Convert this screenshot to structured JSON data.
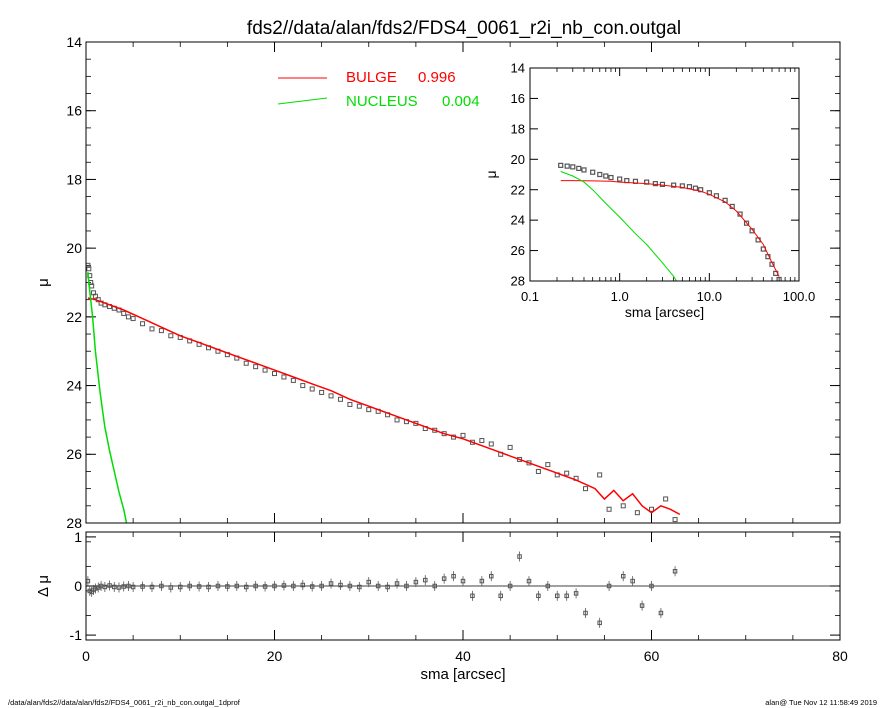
{
  "title": "fds2//data/alan/fds2/FDS4_0061_r2i_nb_con.outgal",
  "footer": {
    "left": "/data/alan/fds2//data/alan/fds2/FDS4_0061_r2i_nb_con.outgal_1dprof",
    "right": "alan@  Tue Nov 12 11:58:49 2019"
  },
  "colors": {
    "bulge": "#ff0000",
    "nucleus": "#00dd00",
    "data": "#555555",
    "axis": "#000000"
  },
  "chart_data": [
    {
      "id": "main_profile",
      "type": "line",
      "xlabel": "sma [arcsec]",
      "ylabel": "μ",
      "xlim": [
        0,
        80
      ],
      "ylim": [
        28,
        14
      ],
      "x_ticks": [
        "0",
        "20",
        "40",
        "60",
        "80"
      ],
      "y_ticks": [
        "14",
        "16",
        "18",
        "20",
        "22",
        "24",
        "26",
        "28"
      ],
      "legend_position": "top-center",
      "legend": [
        {
          "name": "BULGE",
          "value": "0.996",
          "color": "#ff0000"
        },
        {
          "name": "NUCLEUS",
          "value": "0.004",
          "color": "#00dd00"
        }
      ],
      "series": [
        {
          "name": "observed",
          "type": "scatter",
          "x": [
            0.2,
            0.3,
            0.4,
            0.5,
            0.6,
            0.8,
            1.0,
            1.3,
            1.6,
            2.0,
            2.5,
            3.0,
            3.5,
            4.0,
            4.5,
            5.0,
            6.0,
            7.0,
            8.0,
            9.0,
            10.0,
            11.0,
            12.0,
            13.0,
            14.0,
            15.0,
            16.0,
            17.0,
            18.0,
            19.0,
            20.0,
            21.0,
            22.0,
            23.0,
            24.0,
            25.0,
            26.0,
            27.0,
            28.0,
            29.0,
            30.0,
            31.0,
            32.0,
            33.0,
            34.0,
            35.0,
            36.0,
            37.0,
            38.0,
            39.0,
            40.0,
            41.0,
            42.0,
            43.0,
            44.0,
            45.0,
            46.0,
            47.0,
            48.0,
            49.0,
            50.0,
            51.0,
            52.0,
            53.0,
            54.5,
            55.5,
            57.0,
            58.5,
            60.0,
            61.5,
            62.5
          ],
          "y": [
            20.5,
            20.6,
            20.8,
            21.0,
            21.1,
            21.3,
            21.4,
            21.5,
            21.6,
            21.65,
            21.7,
            21.75,
            21.8,
            21.9,
            22.0,
            22.05,
            22.2,
            22.35,
            22.4,
            22.55,
            22.6,
            22.7,
            22.8,
            22.9,
            23.0,
            23.1,
            23.2,
            23.35,
            23.45,
            23.55,
            23.65,
            23.75,
            23.85,
            24.0,
            24.1,
            24.2,
            24.3,
            24.4,
            24.55,
            24.6,
            24.7,
            24.75,
            24.85,
            25.0,
            25.05,
            25.1,
            25.25,
            25.3,
            25.4,
            25.5,
            25.45,
            25.65,
            25.6,
            25.7,
            26.0,
            25.8,
            26.15,
            26.25,
            26.5,
            26.3,
            26.6,
            26.55,
            26.7,
            27.0,
            26.6,
            27.6,
            27.5,
            27.7,
            27.6,
            27.3,
            27.9
          ]
        },
        {
          "name": "BULGE",
          "type": "line",
          "x": [
            0.2,
            1,
            2,
            4,
            6,
            8,
            10,
            12,
            14,
            16,
            18,
            20,
            22,
            24,
            26,
            28,
            30,
            32,
            34,
            36,
            38,
            40,
            42,
            44,
            46,
            48,
            50,
            52,
            54,
            55,
            56,
            57,
            58,
            59,
            60,
            61,
            62,
            63
          ],
          "y": [
            21.45,
            21.5,
            21.6,
            21.8,
            22.05,
            22.3,
            22.55,
            22.75,
            22.95,
            23.15,
            23.35,
            23.55,
            23.75,
            23.95,
            24.15,
            24.4,
            24.6,
            24.8,
            25.0,
            25.2,
            25.4,
            25.55,
            25.75,
            25.95,
            26.15,
            26.35,
            26.55,
            26.75,
            27.0,
            27.3,
            27.05,
            27.35,
            27.15,
            27.5,
            27.7,
            27.5,
            27.6,
            27.75
          ]
        },
        {
          "name": "NUCLEUS",
          "type": "line",
          "x": [
            0.2,
            0.3,
            0.5,
            0.7,
            1.0,
            1.5,
            2.0,
            2.5,
            3.0,
            3.5,
            4.0,
            4.3
          ],
          "y": [
            20.7,
            21.0,
            21.5,
            22.0,
            23.0,
            24.2,
            25.2,
            25.9,
            26.5,
            27.1,
            27.6,
            28.0
          ]
        }
      ]
    },
    {
      "id": "inset_log_profile",
      "type": "line",
      "xlabel": "sma [arcsec]",
      "ylabel": "μ",
      "xscale": "log",
      "xlim": [
        0.1,
        100
      ],
      "ylim": [
        28,
        14
      ],
      "x_ticks": [
        "0.1",
        "1.0",
        "10.0",
        "100.0"
      ],
      "y_ticks": [
        "14",
        "16",
        "18",
        "20",
        "22",
        "24",
        "26",
        "28"
      ],
      "series": [
        {
          "name": "observed",
          "type": "scatter",
          "x": [
            0.22,
            0.26,
            0.3,
            0.35,
            0.4,
            0.5,
            0.6,
            0.7,
            0.8,
            1.0,
            1.2,
            1.5,
            2.0,
            2.5,
            3.0,
            4.0,
            5.0,
            6.0,
            7.0,
            8.0,
            10.0,
            12.0,
            15.0,
            18.0,
            22.0,
            26.0,
            30.0,
            35.0,
            40.0,
            45.0,
            50.0,
            55.0,
            60.0
          ],
          "y": [
            20.4,
            20.45,
            20.5,
            20.6,
            20.7,
            20.85,
            21.0,
            21.1,
            21.2,
            21.3,
            21.4,
            21.45,
            21.5,
            21.6,
            21.65,
            21.7,
            21.75,
            21.8,
            21.9,
            22.0,
            22.2,
            22.4,
            22.7,
            23.1,
            23.6,
            24.2,
            24.7,
            25.3,
            25.9,
            26.4,
            26.9,
            27.5,
            27.9
          ]
        },
        {
          "name": "BULGE",
          "type": "line",
          "x": [
            0.22,
            0.3,
            0.5,
            0.8,
            1.0,
            2.0,
            3.0,
            5.0,
            8.0,
            10.0,
            15.0,
            20.0,
            30.0,
            40.0,
            50.0,
            60.0
          ],
          "y": [
            21.4,
            21.4,
            21.42,
            21.45,
            21.5,
            21.6,
            21.7,
            21.85,
            22.1,
            22.3,
            22.8,
            23.4,
            24.6,
            25.6,
            26.8,
            27.7
          ]
        },
        {
          "name": "NUCLEUS",
          "type": "line",
          "x": [
            0.22,
            0.3,
            0.4,
            0.5,
            0.7,
            1.0,
            1.5,
            2.0,
            3.0,
            4.0,
            4.3
          ],
          "y": [
            20.8,
            21.1,
            21.5,
            22.0,
            22.9,
            23.8,
            24.9,
            25.6,
            26.8,
            27.7,
            28.0
          ]
        }
      ]
    },
    {
      "id": "residuals",
      "type": "scatter",
      "xlabel": "sma [arcsec]",
      "ylabel": "Δ μ",
      "xlim": [
        0,
        80
      ],
      "ylim": [
        -1.1,
        1.1
      ],
      "x_ticks": [
        "0",
        "20",
        "40",
        "60",
        "80"
      ],
      "y_ticks": [
        "1",
        "0",
        "-1"
      ],
      "zero_line": true,
      "series": [
        {
          "name": "residual",
          "x": [
            0.2,
            0.4,
            0.6,
            0.8,
            1.0,
            1.3,
            1.6,
            2.0,
            2.5,
            3.0,
            3.5,
            4.0,
            4.5,
            5.0,
            6.0,
            7.0,
            8.0,
            9.0,
            10.0,
            11.0,
            12.0,
            13.0,
            14.0,
            15.0,
            16.0,
            17.0,
            18.0,
            19.0,
            20.0,
            21.0,
            22.0,
            23.0,
            24.0,
            25.0,
            26.0,
            27.0,
            28.0,
            29.0,
            30.0,
            31.0,
            32.0,
            33.0,
            34.0,
            35.0,
            36.0,
            37.0,
            38.0,
            39.0,
            40.0,
            41.0,
            42.0,
            43.0,
            44.0,
            45.0,
            46.0,
            47.0,
            48.0,
            49.0,
            50.0,
            51.0,
            52.0,
            53.0,
            54.5,
            55.5,
            57.0,
            58.0,
            59.0,
            60.0,
            61.0,
            62.5
          ],
          "y": [
            0.1,
            -0.1,
            -0.12,
            -0.08,
            -0.05,
            -0.03,
            0.0,
            -0.02,
            0.01,
            -0.02,
            -0.03,
            -0.01,
            0.0,
            -0.02,
            -0.01,
            -0.02,
            0.0,
            -0.03,
            -0.02,
            0.0,
            -0.01,
            -0.02,
            0.0,
            -0.01,
            0.0,
            -0.02,
            0.0,
            -0.01,
            0.0,
            0.01,
            0.0,
            0.02,
            -0.01,
            0.0,
            0.05,
            0.02,
            0.0,
            -0.02,
            0.08,
            0.0,
            -0.02,
            0.05,
            0.0,
            0.08,
            0.12,
            0.0,
            0.15,
            0.2,
            0.1,
            -0.2,
            0.1,
            0.2,
            -0.2,
            0.0,
            0.6,
            0.1,
            -0.2,
            0.0,
            -0.2,
            -0.2,
            -0.15,
            -0.55,
            -0.75,
            0.0,
            0.2,
            0.1,
            -0.4,
            0.0,
            -0.55,
            0.3
          ]
        }
      ]
    }
  ]
}
